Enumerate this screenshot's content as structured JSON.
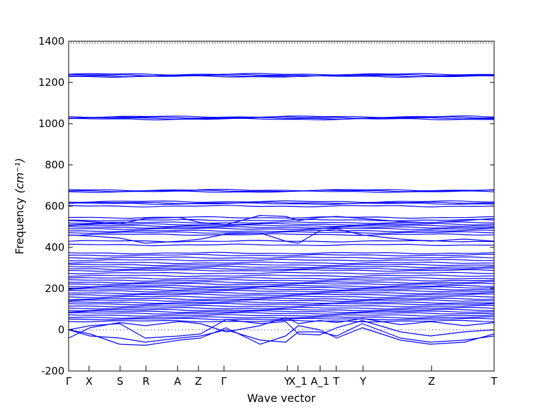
{
  "chart_data": {
    "type": "line",
    "title": "",
    "xlabel": "Wave vector",
    "ylabel": "Frequency",
    "ylabel_unit": "(cm⁻¹)",
    "ylim": [
      -200,
      1400
    ],
    "yticks": [
      -200,
      0,
      200,
      400,
      600,
      800,
      1000,
      1200,
      1400
    ],
    "xlim": [
      0,
      1
    ],
    "series_color": "#0000ff",
    "zero_line": {
      "y": 0,
      "style": "dotted"
    },
    "grid": false,
    "legend": "none",
    "high_symmetry_points": [
      {
        "label": "Γ",
        "x": 0.0
      },
      {
        "label": "X",
        "x": 0.048
      },
      {
        "label": "S",
        "x": 0.121
      },
      {
        "label": "R",
        "x": 0.182
      },
      {
        "label": "A",
        "x": 0.256
      },
      {
        "label": "Z",
        "x": 0.305
      },
      {
        "label": "Γ",
        "x": 0.365
      },
      {
        "label": "Y",
        "x": 0.514
      },
      {
        "label": "X_1",
        "x": 0.539
      },
      {
        "label": "A_1",
        "x": 0.591
      },
      {
        "label": "T",
        "x": 0.629
      },
      {
        "label": "Y",
        "x": 0.692
      },
      {
        "label": "Z",
        "x": 0.853
      },
      {
        "label": "T",
        "x": 1.0
      }
    ],
    "flat_bands": [
      1240,
      1236,
      1232,
      1229,
      1034,
      1030,
      1026,
      1022,
      678,
      674,
      670,
      622,
      616,
      612,
      600,
      545,
      532,
      520,
      512,
      505,
      497,
      490,
      480,
      472,
      462,
      430,
      412,
      372,
      362,
      350,
      338,
      325,
      315,
      305,
      296,
      288,
      275,
      262,
      250,
      240,
      230,
      222,
      212,
      205,
      196,
      188,
      178,
      170,
      160,
      150,
      142,
      132,
      125,
      115,
      105,
      96,
      88,
      80,
      70,
      60,
      52,
      42
    ],
    "dispersive_bands": [
      {
        "x": [
          0,
          0.05,
          0.12,
          0.18,
          0.26,
          0.31,
          0.37,
          0.45,
          0.51,
          0.54,
          0.59,
          0.63,
          0.69,
          0.78,
          0.85,
          0.93,
          1.0
        ],
        "y": [
          0,
          20,
          30,
          -40,
          -30,
          -20,
          50,
          30,
          40,
          -20,
          -25,
          10,
          45,
          -10,
          -30,
          -10,
          0
        ]
      },
      {
        "x": [
          0,
          0.05,
          0.12,
          0.18,
          0.26,
          0.31,
          0.37,
          0.45,
          0.51,
          0.54,
          0.59,
          0.63,
          0.69,
          0.78,
          0.85,
          0.93,
          1.0
        ],
        "y": [
          0,
          -30,
          -40,
          -60,
          -40,
          -30,
          0,
          -50,
          -60,
          -10,
          -10,
          -30,
          30,
          -40,
          -60,
          -50,
          -30
        ]
      },
      {
        "x": [
          0,
          0.05,
          0.12,
          0.18,
          0.26,
          0.31,
          0.37,
          0.45,
          0.51,
          0.54,
          0.59,
          0.63,
          0.69,
          0.78,
          0.85,
          0.93,
          1.0
        ],
        "y": [
          0,
          -20,
          -70,
          -75,
          -50,
          -40,
          10,
          -70,
          -30,
          20,
          0,
          -40,
          10,
          -50,
          -70,
          -60,
          -20
        ]
      },
      {
        "x": [
          0,
          0.05,
          0.12,
          0.18,
          0.26,
          0.31,
          0.37,
          0.45,
          0.51,
          0.54,
          0.59,
          0.63,
          0.69,
          0.78,
          0.85,
          0.93,
          1.0
        ],
        "y": [
          -40,
          10,
          35,
          20,
          40,
          30,
          -10,
          20,
          60,
          30,
          45,
          35,
          55,
          25,
          40,
          20,
          35
        ]
      },
      {
        "x": [
          0,
          0.05,
          0.12,
          0.18,
          0.26,
          0.31,
          0.37,
          0.45,
          0.51,
          0.54,
          0.59,
          0.63,
          0.69,
          0.78,
          0.85,
          0.93,
          1.0
        ],
        "y": [
          460,
          455,
          445,
          420,
          430,
          440,
          465,
          470,
          430,
          420,
          480,
          490,
          460,
          440,
          430,
          440,
          430
        ]
      },
      {
        "x": [
          0,
          0.05,
          0.12,
          0.18,
          0.26,
          0.31,
          0.37,
          0.45,
          0.51,
          0.54,
          0.59,
          0.63,
          0.69,
          0.78,
          0.85,
          0.93,
          1.0
        ],
        "y": [
          530,
          525,
          515,
          540,
          545,
          520,
          510,
          555,
          550,
          530,
          545,
          550,
          540,
          525,
          520,
          530,
          540
        ]
      }
    ]
  }
}
